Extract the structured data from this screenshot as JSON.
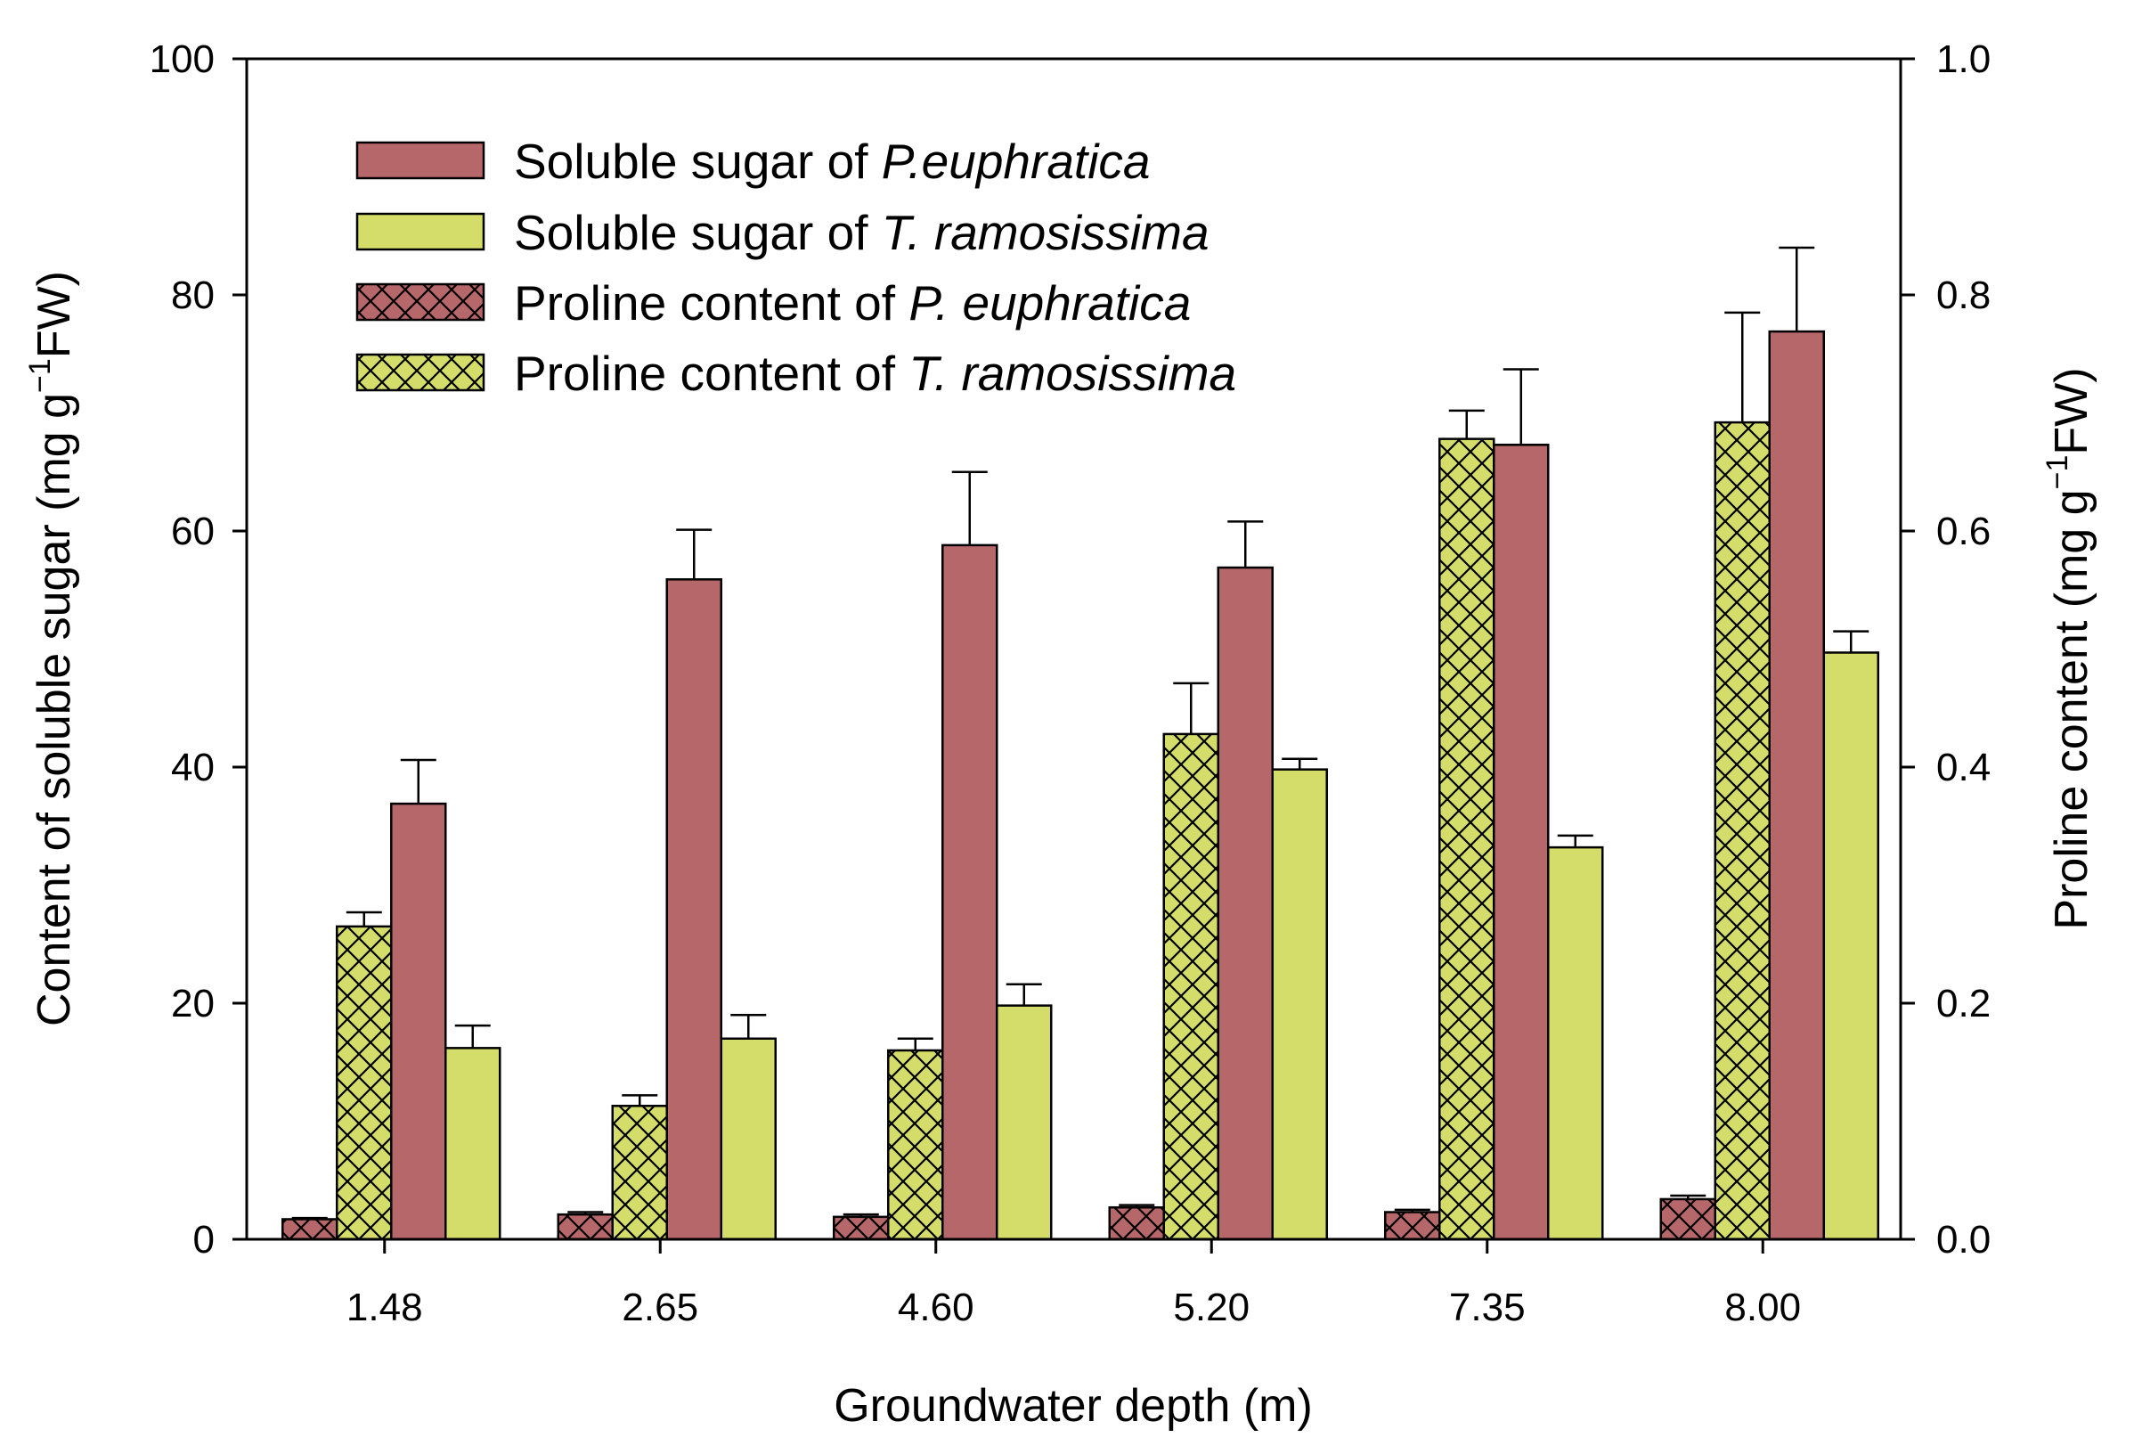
{
  "chart_data": {
    "type": "bar",
    "title": "",
    "xlabel": "Groundwater depth (m)",
    "ylabel": {
      "prefix": "Content of soluble sugar (mg g",
      "sup": "−1",
      "suffix": "FW)"
    },
    "y2label": {
      "prefix": "Proline content (mg g",
      "sup": "−1",
      "suffix": "FW)"
    },
    "categories": [
      "1.48",
      "2.65",
      "4.60",
      "5.20",
      "7.35",
      "8.00"
    ],
    "ylim": [
      0,
      100
    ],
    "y2lim": [
      0,
      1.0
    ],
    "yticks": [
      "0",
      "20",
      "40",
      "60",
      "80",
      "100"
    ],
    "y2ticks": [
      "0.0",
      "0.2",
      "0.4",
      "0.6",
      "0.8",
      "1.0"
    ],
    "legend_position": "top-left",
    "series": [
      {
        "name": "Proline content of P. euphratica",
        "legend": {
          "prefix": "Proline content of ",
          "species": "P. euphratica"
        },
        "axis": "right",
        "pattern": "crosshatch",
        "color": "#b5676a",
        "values": [
          0.017,
          0.021,
          0.019,
          0.027,
          0.023,
          0.034
        ],
        "errors": [
          0.001,
          0.002,
          0.002,
          0.002,
          0.002,
          0.003
        ]
      },
      {
        "name": "Proline content of T. ramosissima",
        "legend": {
          "prefix": "Proline content of ",
          "species": "T. ramosissima"
        },
        "axis": "right",
        "pattern": "crosshatch",
        "color": "#d4dc6a",
        "values": [
          0.265,
          0.113,
          0.16,
          0.428,
          0.678,
          0.692
        ],
        "errors": [
          0.012,
          0.009,
          0.01,
          0.043,
          0.024,
          0.093
        ]
      },
      {
        "name": "Soluble sugar of P.euphratica",
        "legend": {
          "prefix": "Soluble sugar of ",
          "species": "P.euphratica"
        },
        "axis": "left",
        "pattern": "solid",
        "color": "#b5676a",
        "values": [
          36.9,
          55.9,
          58.8,
          56.9,
          67.3,
          76.9
        ],
        "errors": [
          3.7,
          4.2,
          6.2,
          3.9,
          6.4,
          7.1
        ]
      },
      {
        "name": "Soluble sugar of T. ramosissima",
        "legend": {
          "prefix": "Soluble sugar of ",
          "species": "T. ramosissima"
        },
        "axis": "left",
        "pattern": "solid",
        "color": "#d4dc6a",
        "values": [
          16.2,
          17.0,
          19.8,
          39.8,
          33.2,
          49.7
        ],
        "errors": [
          1.9,
          2.0,
          1.8,
          0.9,
          1.0,
          1.8
        ]
      }
    ],
    "legend_order": [
      2,
      3,
      0,
      1
    ]
  }
}
